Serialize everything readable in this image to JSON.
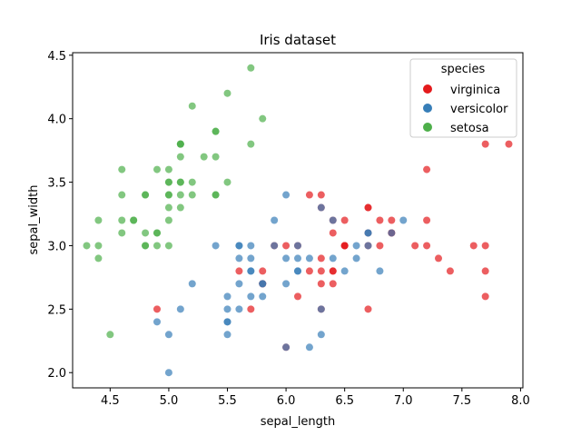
{
  "chart_data": {
    "type": "scatter",
    "title": "Iris dataset",
    "xlabel": "sepal_length",
    "ylabel": "sepal_width",
    "xlim": [
      4.18,
      8.02
    ],
    "ylim": [
      1.88,
      4.52
    ],
    "xticks": [
      "4.5",
      "5.0",
      "5.5",
      "6.0",
      "6.5",
      "7.0",
      "7.5",
      "8.0"
    ],
    "yticks": [
      "2.0",
      "2.5",
      "3.0",
      "3.5",
      "4.0",
      "4.5"
    ],
    "grid": false,
    "legend": {
      "title": "species",
      "placement": "top-right"
    },
    "series": [
      {
        "name": "virginica",
        "color": "#e41a1c",
        "points": [
          [
            6.3,
            3.3
          ],
          [
            5.8,
            2.7
          ],
          [
            7.1,
            3.0
          ],
          [
            6.3,
            2.9
          ],
          [
            6.5,
            3.0
          ],
          [
            7.6,
            3.0
          ],
          [
            4.9,
            2.5
          ],
          [
            7.3,
            2.9
          ],
          [
            6.7,
            2.5
          ],
          [
            7.2,
            3.6
          ],
          [
            6.5,
            3.2
          ],
          [
            6.4,
            2.7
          ],
          [
            6.8,
            3.0
          ],
          [
            5.7,
            2.5
          ],
          [
            5.8,
            2.8
          ],
          [
            6.4,
            3.2
          ],
          [
            6.5,
            3.0
          ],
          [
            7.7,
            3.8
          ],
          [
            7.7,
            2.6
          ],
          [
            6.0,
            2.2
          ],
          [
            6.9,
            3.2
          ],
          [
            5.6,
            2.8
          ],
          [
            7.7,
            2.8
          ],
          [
            6.3,
            2.7
          ],
          [
            6.7,
            3.3
          ],
          [
            7.2,
            3.2
          ],
          [
            6.2,
            2.8
          ],
          [
            6.1,
            3.0
          ],
          [
            6.4,
            2.8
          ],
          [
            7.2,
            3.0
          ],
          [
            7.4,
            2.8
          ],
          [
            7.9,
            3.8
          ],
          [
            6.4,
            2.8
          ],
          [
            6.3,
            2.8
          ],
          [
            6.1,
            2.6
          ],
          [
            7.7,
            3.0
          ],
          [
            6.3,
            3.4
          ],
          [
            6.4,
            3.1
          ],
          [
            6.0,
            3.0
          ],
          [
            6.9,
            3.1
          ],
          [
            6.7,
            3.1
          ],
          [
            6.9,
            3.1
          ],
          [
            5.8,
            2.7
          ],
          [
            6.8,
            3.2
          ],
          [
            6.7,
            3.3
          ],
          [
            6.7,
            3.0
          ],
          [
            6.3,
            2.5
          ],
          [
            6.5,
            3.0
          ],
          [
            6.2,
            3.4
          ],
          [
            5.9,
            3.0
          ]
        ]
      },
      {
        "name": "versicolor",
        "color": "#377eb8",
        "points": [
          [
            7.0,
            3.2
          ],
          [
            6.4,
            3.2
          ],
          [
            6.9,
            3.1
          ],
          [
            5.5,
            2.3
          ],
          [
            6.5,
            2.8
          ],
          [
            5.7,
            2.8
          ],
          [
            6.3,
            3.3
          ],
          [
            4.9,
            2.4
          ],
          [
            6.6,
            2.9
          ],
          [
            5.2,
            2.7
          ],
          [
            5.0,
            2.0
          ],
          [
            5.9,
            3.0
          ],
          [
            6.0,
            2.2
          ],
          [
            6.1,
            2.9
          ],
          [
            5.6,
            2.9
          ],
          [
            6.7,
            3.1
          ],
          [
            5.6,
            3.0
          ],
          [
            5.8,
            2.7
          ],
          [
            6.2,
            2.2
          ],
          [
            5.6,
            2.5
          ],
          [
            5.9,
            3.2
          ],
          [
            6.1,
            2.8
          ],
          [
            6.3,
            2.5
          ],
          [
            6.1,
            2.8
          ],
          [
            6.4,
            2.9
          ],
          [
            6.6,
            3.0
          ],
          [
            6.8,
            2.8
          ],
          [
            6.7,
            3.0
          ],
          [
            6.0,
            2.9
          ],
          [
            5.7,
            2.6
          ],
          [
            5.5,
            2.4
          ],
          [
            5.5,
            2.4
          ],
          [
            5.8,
            2.7
          ],
          [
            6.0,
            2.7
          ],
          [
            5.4,
            3.0
          ],
          [
            6.0,
            3.4
          ],
          [
            6.7,
            3.1
          ],
          [
            6.3,
            2.3
          ],
          [
            5.6,
            3.0
          ],
          [
            5.5,
            2.5
          ],
          [
            5.5,
            2.6
          ],
          [
            6.1,
            3.0
          ],
          [
            5.8,
            2.6
          ],
          [
            5.0,
            2.3
          ],
          [
            5.6,
            2.7
          ],
          [
            5.7,
            3.0
          ],
          [
            5.7,
            2.9
          ],
          [
            6.2,
            2.9
          ],
          [
            5.1,
            2.5
          ],
          [
            5.7,
            2.8
          ]
        ]
      },
      {
        "name": "setosa",
        "color": "#4daf4a",
        "points": [
          [
            5.1,
            3.5
          ],
          [
            4.9,
            3.0
          ],
          [
            4.7,
            3.2
          ],
          [
            4.6,
            3.1
          ],
          [
            5.0,
            3.6
          ],
          [
            5.4,
            3.9
          ],
          [
            4.6,
            3.4
          ],
          [
            5.0,
            3.4
          ],
          [
            4.4,
            2.9
          ],
          [
            4.9,
            3.1
          ],
          [
            5.4,
            3.7
          ],
          [
            4.8,
            3.4
          ],
          [
            4.8,
            3.0
          ],
          [
            4.3,
            3.0
          ],
          [
            5.8,
            4.0
          ],
          [
            5.7,
            4.4
          ],
          [
            5.4,
            3.9
          ],
          [
            5.1,
            3.5
          ],
          [
            5.7,
            3.8
          ],
          [
            5.1,
            3.8
          ],
          [
            5.4,
            3.4
          ],
          [
            5.1,
            3.7
          ],
          [
            4.6,
            3.6
          ],
          [
            5.1,
            3.3
          ],
          [
            4.8,
            3.4
          ],
          [
            5.0,
            3.0
          ],
          [
            5.0,
            3.4
          ],
          [
            5.2,
            3.5
          ],
          [
            5.2,
            3.4
          ],
          [
            4.7,
            3.2
          ],
          [
            4.8,
            3.1
          ],
          [
            5.4,
            3.4
          ],
          [
            5.2,
            4.1
          ],
          [
            5.5,
            4.2
          ],
          [
            4.9,
            3.1
          ],
          [
            5.0,
            3.2
          ],
          [
            5.5,
            3.5
          ],
          [
            4.9,
            3.6
          ],
          [
            4.4,
            3.0
          ],
          [
            5.1,
            3.4
          ],
          [
            5.0,
            3.5
          ],
          [
            4.5,
            2.3
          ],
          [
            4.4,
            3.2
          ],
          [
            5.0,
            3.5
          ],
          [
            5.1,
            3.8
          ],
          [
            4.8,
            3.0
          ],
          [
            5.1,
            3.8
          ],
          [
            4.6,
            3.2
          ],
          [
            5.3,
            3.7
          ],
          [
            5.0,
            3.3
          ]
        ]
      }
    ]
  }
}
